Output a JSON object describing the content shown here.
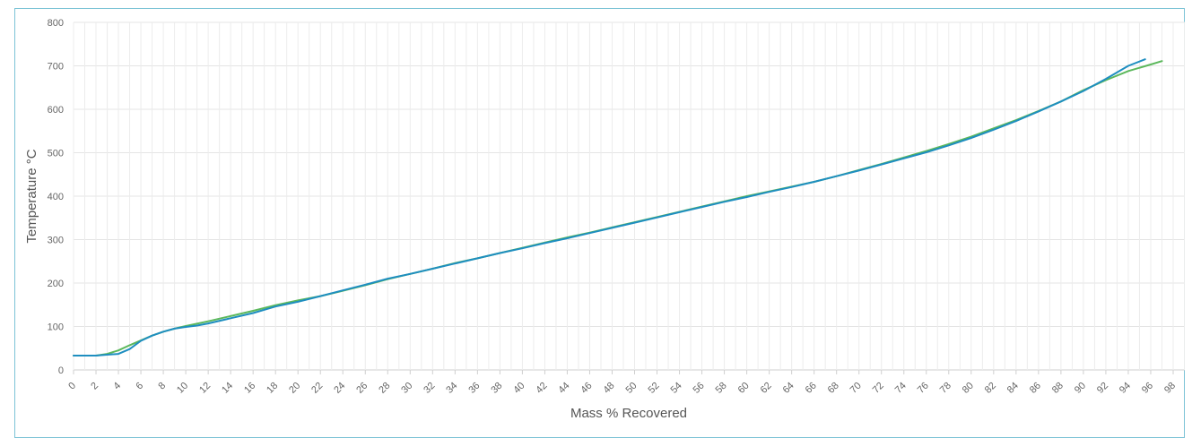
{
  "chart_data": {
    "type": "line",
    "title": "",
    "xlabel": "Mass % Recovered",
    "ylabel": "Temperature °C",
    "xlim": [
      0,
      98
    ],
    "ylim": [
      0,
      800
    ],
    "x_ticks": [
      0,
      2,
      4,
      6,
      8,
      10,
      12,
      14,
      16,
      18,
      20,
      22,
      24,
      26,
      28,
      30,
      32,
      34,
      36,
      38,
      40,
      42,
      44,
      46,
      48,
      50,
      52,
      54,
      56,
      58,
      60,
      62,
      64,
      66,
      68,
      70,
      72,
      74,
      76,
      78,
      80,
      82,
      84,
      86,
      88,
      90,
      92,
      94,
      96,
      98
    ],
    "y_ticks": [
      0,
      100,
      200,
      300,
      400,
      500,
      600,
      700,
      800
    ],
    "grid": true,
    "legend": "none",
    "series": [
      {
        "color": "#5cb85c",
        "x": [
          0,
          2,
          3,
          4,
          5,
          6,
          7,
          8,
          9,
          10,
          12,
          14,
          16,
          18,
          20,
          22,
          24,
          26,
          28,
          30,
          32,
          34,
          36,
          38,
          40,
          42,
          44,
          46,
          48,
          50,
          52,
          54,
          56,
          58,
          60,
          62,
          64,
          66,
          68,
          70,
          72,
          74,
          76,
          78,
          80,
          82,
          84,
          86,
          88,
          90,
          92,
          94,
          96,
          97
        ],
        "y": [
          33,
          33,
          37,
          45,
          57,
          68,
          79,
          88,
          95,
          101,
          112,
          124,
          136,
          149,
          160,
          170,
          182,
          195,
          209,
          221,
          233,
          246,
          257,
          269,
          281,
          293,
          305,
          316,
          328,
          340,
          352,
          364,
          376,
          388,
          400,
          411,
          422,
          433,
          446,
          460,
          474,
          489,
          504,
          520,
          537,
          556,
          575,
          596,
          618,
          644,
          667,
          688,
          703,
          711
        ]
      },
      {
        "color": "#1e8ec0",
        "x": [
          0,
          2,
          3,
          4,
          5,
          6,
          7,
          8,
          9,
          10,
          11,
          12,
          14,
          16,
          18,
          20,
          22,
          24,
          26,
          28,
          30,
          32,
          34,
          36,
          38,
          40,
          42,
          44,
          46,
          48,
          50,
          52,
          54,
          56,
          58,
          60,
          62,
          64,
          66,
          68,
          70,
          72,
          74,
          76,
          78,
          80,
          82,
          84,
          86,
          88,
          90,
          92,
          94,
          95.5
        ],
        "y": [
          33,
          33,
          35,
          37,
          48,
          67,
          79,
          88,
          95,
          99,
          102,
          107,
          119,
          131,
          146,
          157,
          170,
          183,
          196,
          210,
          221,
          233,
          245,
          257,
          269,
          280,
          292,
          303,
          315,
          327,
          339,
          351,
          363,
          375,
          387,
          398,
          410,
          421,
          433,
          446,
          459,
          473,
          487,
          501,
          517,
          534,
          553,
          573,
          595,
          618,
          642,
          670,
          700,
          715
        ]
      }
    ]
  }
}
